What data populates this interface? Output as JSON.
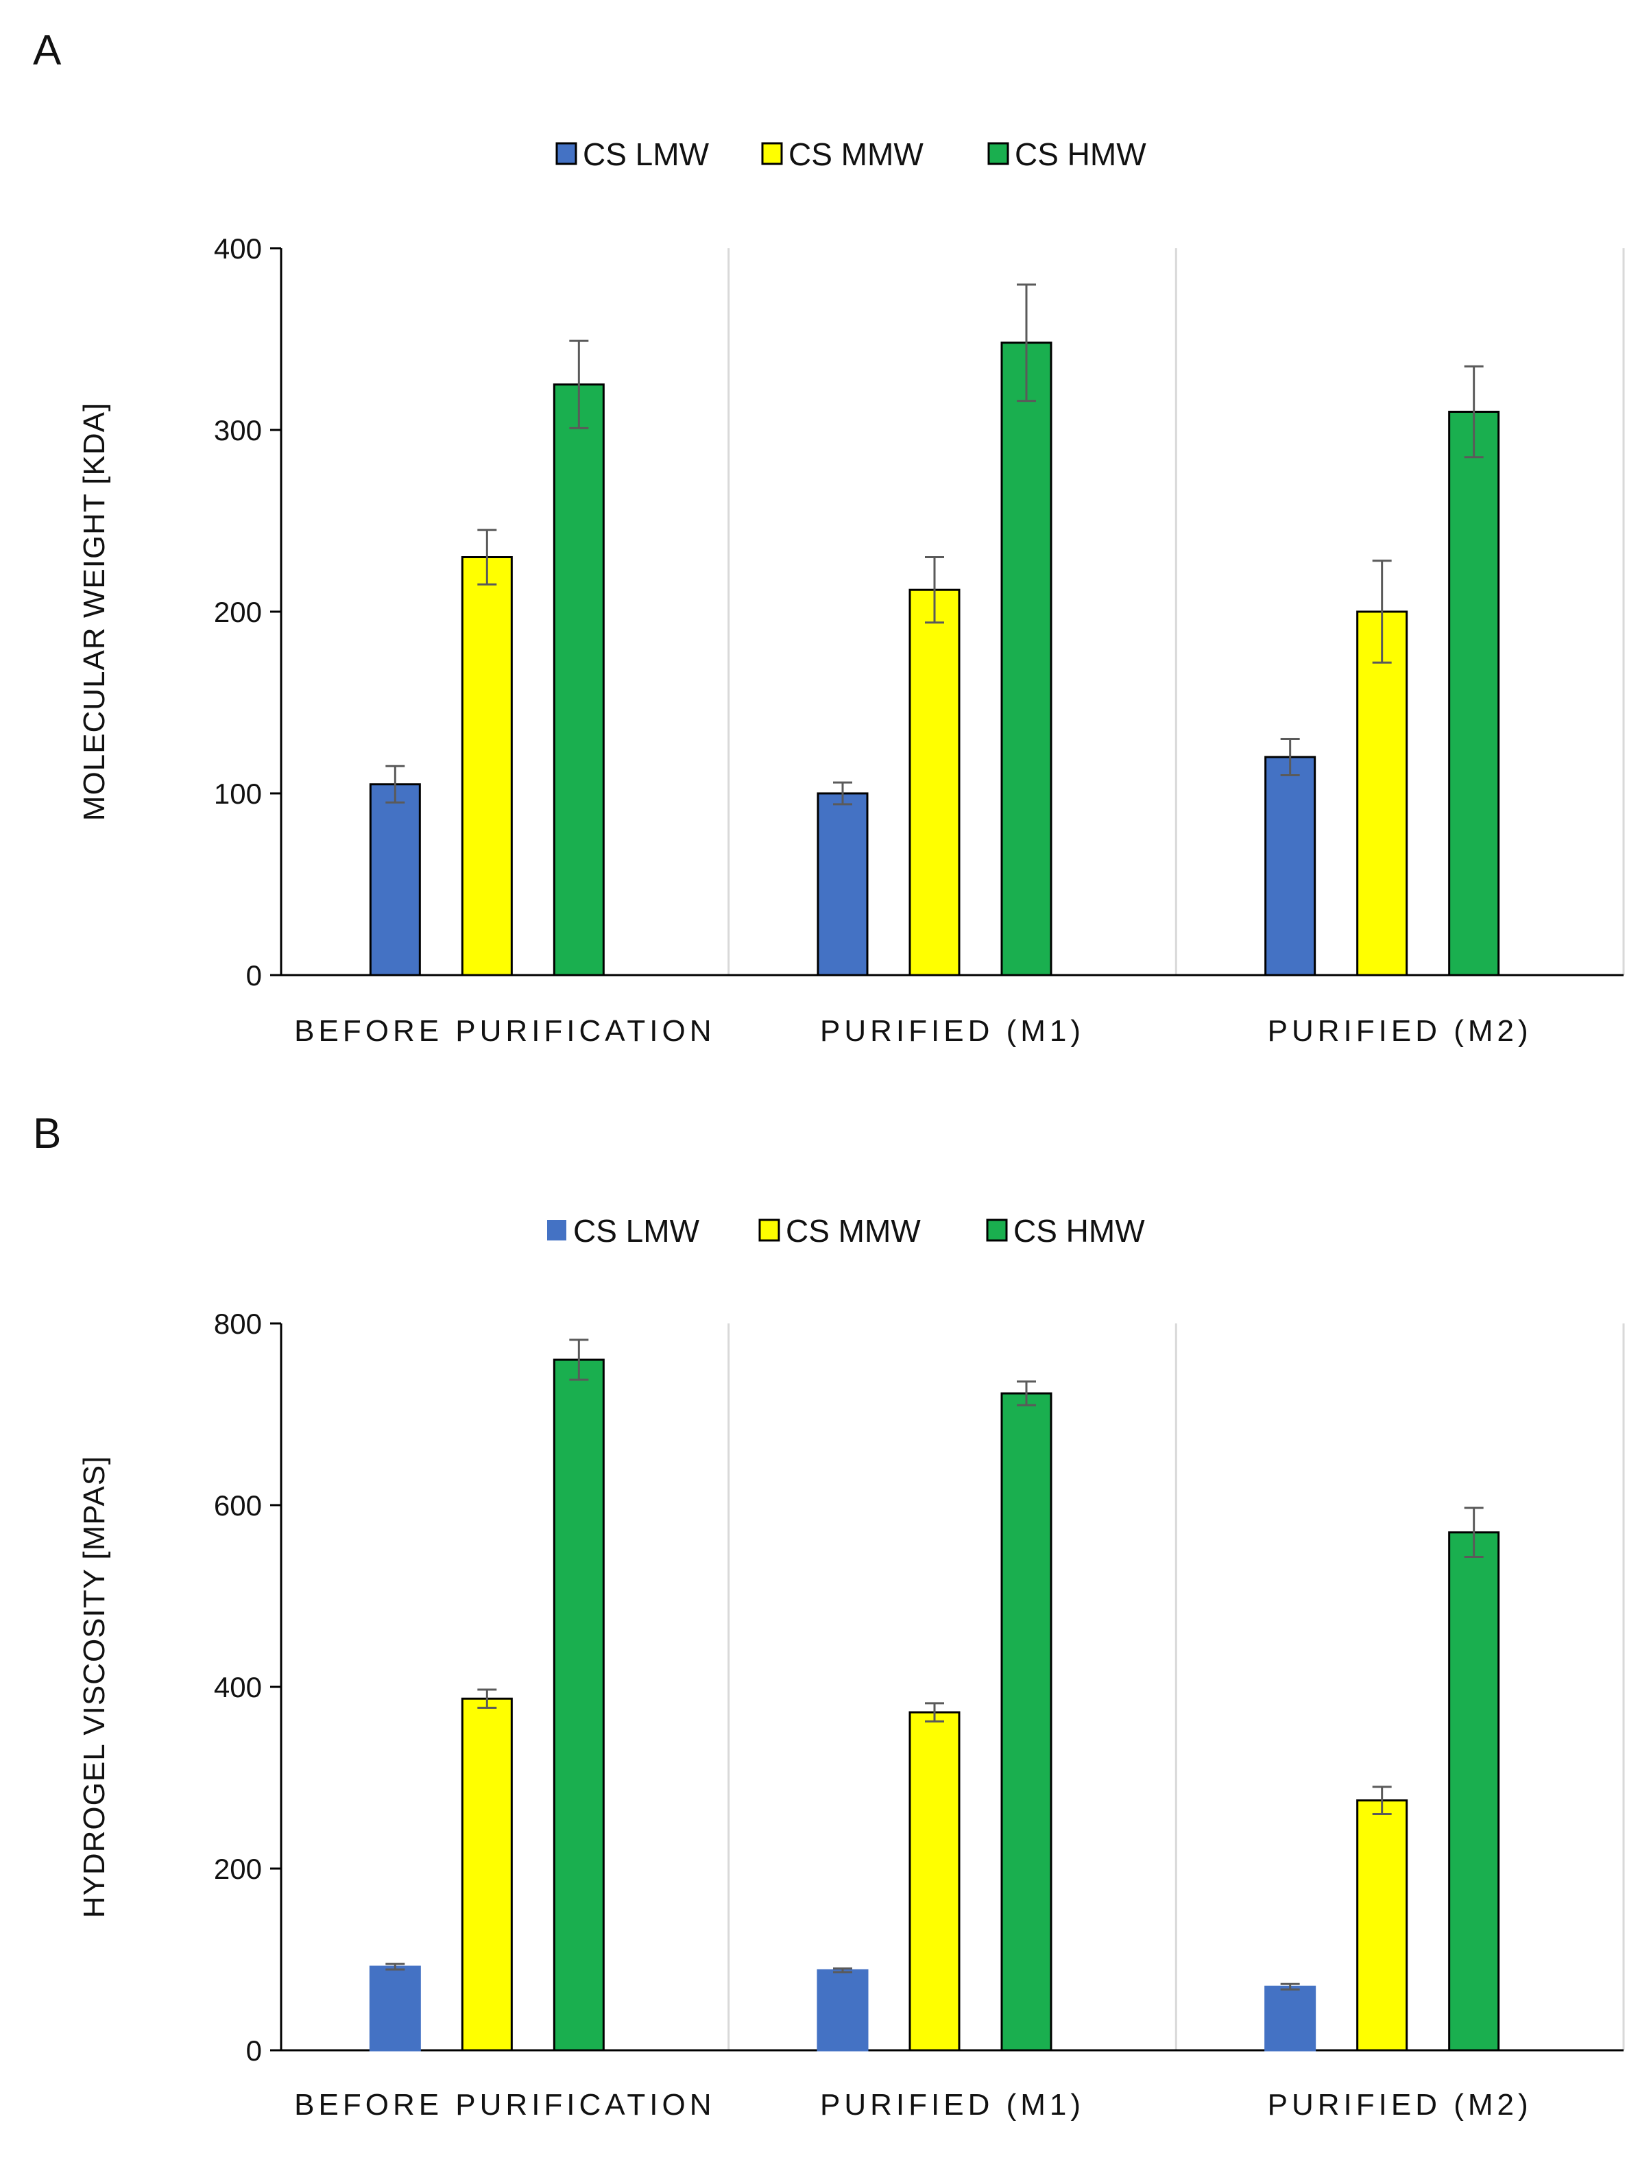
{
  "chart_data": [
    {
      "panel": "A",
      "type": "bar",
      "categories": [
        "BEFORE PURIFICATION",
        "PURIFIED (M1)",
        "PURIFIED (M2)"
      ],
      "series": [
        {
          "name": "CS LMW",
          "color": "#4472c4",
          "values": [
            105,
            100,
            120
          ],
          "errors": [
            10,
            6,
            10
          ]
        },
        {
          "name": "CS MMW",
          "color": "#ffff00",
          "values": [
            230,
            212,
            200
          ],
          "errors": [
            15,
            18,
            28
          ]
        },
        {
          "name": "CS HMW",
          "color": "#1aaf4f",
          "values": [
            325,
            348,
            310
          ],
          "errors": [
            24,
            32,
            25
          ]
        }
      ],
      "ylabel": "MOLECULAR  WEIGHT [KDA]",
      "xlabel": "",
      "ylim": [
        0,
        400
      ],
      "yticks": [
        0,
        100,
        200,
        300,
        400
      ],
      "legend": "top-center",
      "grid": false
    },
    {
      "panel": "B",
      "type": "bar",
      "categories": [
        "BEFORE PURIFICATION",
        "PURIFIED (M1)",
        "PURIFIED (M2)"
      ],
      "series": [
        {
          "name": "CS LMW",
          "color": "#4472c4",
          "values": [
            92,
            88,
            70
          ],
          "errors": [
            3,
            2,
            3
          ]
        },
        {
          "name": "CS MMW",
          "color": "#ffff00",
          "values": [
            387,
            372,
            275
          ],
          "errors": [
            10,
            10,
            15
          ]
        },
        {
          "name": "CS HMW",
          "color": "#1aaf4f",
          "values": [
            760,
            723,
            570
          ],
          "errors": [
            22,
            13,
            27
          ]
        }
      ],
      "ylabel": "HYDROGEL VISCOSITY [MPAS]",
      "xlabel": "",
      "ylim": [
        0,
        800
      ],
      "yticks": [
        0,
        200,
        400,
        600,
        800
      ],
      "legend": "top-center",
      "grid": false
    }
  ]
}
